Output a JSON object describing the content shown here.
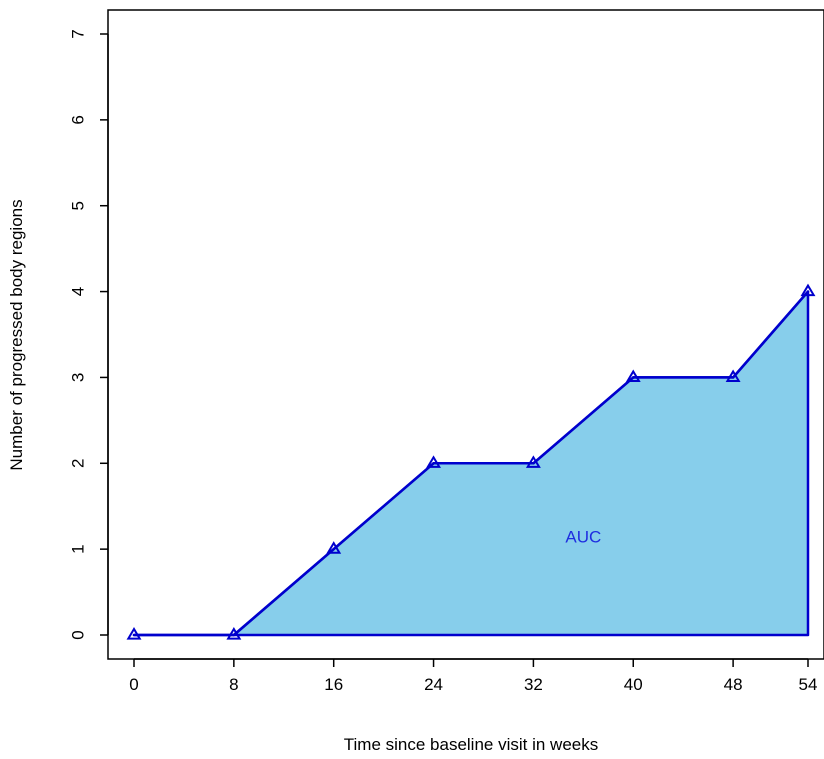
{
  "chart_data": {
    "type": "area",
    "x": [
      0,
      8,
      16,
      24,
      32,
      40,
      48,
      54
    ],
    "y": [
      0,
      0,
      1,
      2,
      2,
      3,
      3,
      4
    ],
    "xticks": [
      "0",
      "8",
      "16",
      "24",
      "32",
      "40",
      "48",
      "54"
    ],
    "yticks": [
      "0",
      "1",
      "2",
      "3",
      "4",
      "5",
      "6",
      "7"
    ],
    "xlabel": "Time since baseline visit in weeks",
    "ylabel": "Number of progressed body regions",
    "xlim": [
      0,
      54
    ],
    "ylim": [
      0,
      7
    ],
    "marker": "open-triangle",
    "grid": false,
    "annotation": {
      "text": "AUC",
      "x": 36,
      "y": 1.15
    },
    "colors": {
      "line": "#0000cd",
      "fill": "#87ceeb",
      "annotation": "#1f2ee0",
      "axis": "#000000"
    }
  }
}
